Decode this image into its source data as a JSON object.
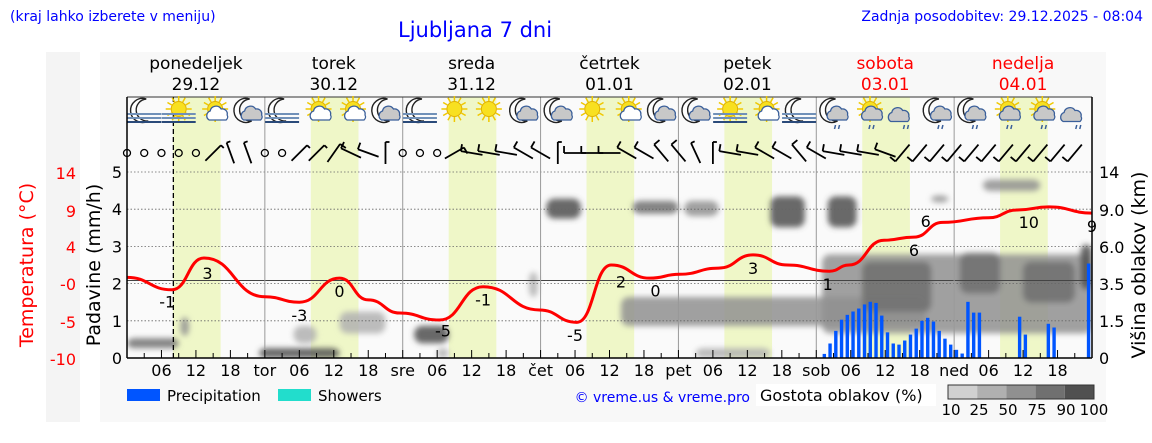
{
  "header": {
    "hint": "(kraj lahko izberete v meniju)",
    "title": "Ljubljana 7 dni",
    "updated": "Zadnja posodobitev: 29.12.2025 - 08:04"
  },
  "days": [
    {
      "name": "ponedeljek",
      "date": "29.12",
      "short": "",
      "weekend": false
    },
    {
      "name": "torek",
      "date": "30.12",
      "short": "tor",
      "weekend": false
    },
    {
      "name": "sreda",
      "date": "31.12",
      "short": "sre",
      "weekend": false
    },
    {
      "name": "četrtek",
      "date": "01.01",
      "short": "čet",
      "weekend": false
    },
    {
      "name": "petek",
      "date": "02.01",
      "short": "pet",
      "weekend": false
    },
    {
      "name": "sobota",
      "date": "03.01",
      "short": "sob",
      "weekend": true
    },
    {
      "name": "nedelja",
      "date": "04.01",
      "short": "ned",
      "weekend": true
    }
  ],
  "hour_labels": [
    "06",
    "12",
    "18"
  ],
  "axes": {
    "temp_title": "Temperatura (°C)",
    "temp_ticks": [
      "14",
      "9",
      "4",
      "-0",
      "-5",
      "-10"
    ],
    "precip_title": "Padavine (mm/h)",
    "precip_ticks": [
      "0",
      "1",
      "2",
      "3",
      "4",
      "5"
    ],
    "cloud_title": "Višina oblakov (km)",
    "cloud_ticks": [
      "0",
      "1.5",
      "3.5",
      "6.0",
      "9.0",
      "14"
    ]
  },
  "legend": {
    "precipitation": "Precipitation",
    "showers": "Showers",
    "copyright": "© vreme.us & vreme.pro",
    "cloud_density_title": "Gostota oblakov (%)",
    "cloud_density_ticks": [
      "10",
      "25",
      "50",
      "75",
      "90",
      "100"
    ]
  },
  "colors": {
    "temperature": "#ff0000",
    "precipitation": "#0055ff",
    "showers": "#22ddcc",
    "daylight": "#eff7c8",
    "link": "#0000ff",
    "weekend": "#ff0000",
    "cloud_density": [
      "#d0d0d0",
      "#b0b0b0",
      "#909090",
      "#707070",
      "#505050"
    ]
  },
  "chart_data": {
    "type": "meteogram",
    "x_unit": "hours since Mon 29.12 00:00",
    "now_hour": 8.07,
    "daylight_hours": [
      8,
      16.3
    ],
    "temp_range": [
      -10,
      14
    ],
    "precip_range": [
      0,
      5
    ],
    "temperature": {
      "hours": [
        0,
        7.8,
        13.4,
        24,
        30,
        37,
        42,
        47.5,
        54.4,
        62,
        71.8,
        78.3,
        84.3,
        91,
        96.2,
        103,
        109,
        115,
        122.3,
        125.7,
        131.8,
        137,
        142,
        150,
        155,
        160.5,
        168
      ],
      "values": [
        0.4,
        -1.2,
        2.9,
        -2.1,
        -2.8,
        0.3,
        -2.5,
        -4.2,
        -5.1,
        -0.8,
        -3.8,
        -5.4,
        2.0,
        0.3,
        0.8,
        1.6,
        3.3,
        2.0,
        1.2,
        2.0,
        5.2,
        5.6,
        7.5,
        8.1,
        9.1,
        9.5,
        8.7
      ]
    },
    "temperature_labels": [
      {
        "hour": 7,
        "text": "-1"
      },
      {
        "hour": 14,
        "text": "3"
      },
      {
        "hour": 30,
        "text": "-3"
      },
      {
        "hour": 37,
        "text": "0"
      },
      {
        "hour": 55,
        "text": "-5"
      },
      {
        "hour": 62,
        "text": "-1"
      },
      {
        "hour": 78,
        "text": "-5"
      },
      {
        "hour": 86,
        "text": "2"
      },
      {
        "hour": 92,
        "text": "0"
      },
      {
        "hour": 109,
        "text": "3"
      },
      {
        "hour": 122,
        "text": "1"
      },
      {
        "hour": 137,
        "text": "6"
      },
      {
        "hour": 138,
        "text": "6"
      },
      {
        "hour": 157,
        "text": "10"
      },
      {
        "hour": 168,
        "text": "9"
      }
    ],
    "precipitation": {
      "hours": [
        121,
        122,
        123,
        124,
        125,
        126,
        127,
        128,
        129,
        130,
        131,
        132,
        133,
        134,
        135,
        136,
        137,
        138,
        139,
        140,
        141,
        142,
        143,
        144,
        145,
        146,
        147,
        148,
        155,
        156,
        160,
        161,
        167
      ],
      "values": [
        0.11,
        0.39,
        0.73,
        1.03,
        1.16,
        1.25,
        1.33,
        1.44,
        1.51,
        1.48,
        1.14,
        0.69,
        0.39,
        0.36,
        0.47,
        0.63,
        0.79,
        1.0,
        1.08,
        0.98,
        0.73,
        0.52,
        0.36,
        0.22,
        0.12,
        1.51,
        1.22,
        1.22,
        1.11,
        0.63,
        0.92,
        0.82,
        2.54
      ]
    },
    "cloud_cover": [
      {
        "from": 0,
        "to": 9,
        "km_low": 0.4,
        "km_high": 0.8,
        "density": 75
      },
      {
        "from": 23,
        "to": 37,
        "km_low": 0,
        "km_high": 0.4,
        "density": 90
      },
      {
        "from": 9.3,
        "to": 10.8,
        "km_low": 0.9,
        "km_high": 1.7,
        "density": 50
      },
      {
        "from": 29,
        "to": 33,
        "km_low": 0.6,
        "km_high": 1.3,
        "density": 25
      },
      {
        "from": 37,
        "to": 45,
        "km_low": 1.0,
        "km_high": 2.0,
        "density": 25
      },
      {
        "from": 50,
        "to": 56,
        "km_low": 0.6,
        "km_high": 1.3,
        "density": 90
      },
      {
        "from": 54,
        "to": 56,
        "km_low": 0,
        "km_high": 0.4,
        "density": 25
      },
      {
        "from": 70,
        "to": 71.5,
        "km_low": 2.8,
        "km_high": 4.3,
        "density": 25
      },
      {
        "from": 73,
        "to": 79,
        "km_low": 8.3,
        "km_high": 10.5,
        "density": 90
      },
      {
        "from": 88,
        "to": 96,
        "km_low": 8.7,
        "km_high": 10.2,
        "density": 75
      },
      {
        "from": 97,
        "to": 103,
        "km_low": 8.5,
        "km_high": 10.2,
        "density": 50
      },
      {
        "from": 86,
        "to": 139,
        "km_low": 1.3,
        "km_high": 2.8,
        "density": 50
      },
      {
        "from": 99,
        "to": 112,
        "km_low": 0,
        "km_high": 0.4,
        "density": 25
      },
      {
        "from": 112,
        "to": 118,
        "km_low": 7.6,
        "km_high": 10.8,
        "density": 90
      },
      {
        "from": 122,
        "to": 127,
        "km_low": 7.6,
        "km_high": 10.8,
        "density": 90
      },
      {
        "from": 121,
        "to": 168,
        "km_low": 1.0,
        "km_high": 5.5,
        "density": 50
      },
      {
        "from": 128,
        "to": 140,
        "km_low": 2.0,
        "km_high": 5.0,
        "density": 75
      },
      {
        "from": 145,
        "to": 152,
        "km_low": 3.0,
        "km_high": 5.6,
        "density": 75
      },
      {
        "from": 156,
        "to": 165,
        "km_low": 2.5,
        "km_high": 5.0,
        "density": 75
      },
      {
        "from": 140,
        "to": 143,
        "km_low": 10,
        "km_high": 10.9,
        "density": 50
      },
      {
        "from": 149,
        "to": 159,
        "km_low": 11.5,
        "km_high": 13,
        "density": 50
      },
      {
        "from": 166,
        "to": 168,
        "km_low": 3.2,
        "km_high": 6.2,
        "density": 90
      }
    ],
    "weather_icons": [
      "moon-fog",
      "sun-fog",
      "sun-cloud",
      "moon-cloud",
      "moon-fog",
      "sun-cloud",
      "sun-cloud",
      "moon-cloud",
      "moon-fog",
      "sun",
      "sun",
      "moon-cloud",
      "moon-cloud",
      "sun",
      "sun-cloud",
      "moon-cloud",
      "moon-cloud",
      "sun-fog",
      "sun-cloud",
      "moon-fog",
      "moon-cloud-rain",
      "sun-cloud-rain",
      "cloud-rain",
      "moon-cloud-rain",
      "moon-cloud-rain",
      "sun-cloud-rain",
      "sun-cloud-rain",
      "cloud-rain"
    ],
    "wind": [
      [
        0,
        0
      ],
      [
        0,
        0
      ],
      [
        0,
        0
      ],
      [
        0,
        0
      ],
      [
        0,
        0
      ],
      [
        45,
        5
      ],
      [
        340,
        5
      ],
      [
        340,
        5
      ],
      [
        0,
        0
      ],
      [
        0,
        0
      ],
      [
        45,
        5
      ],
      [
        45,
        5
      ],
      [
        35,
        10
      ],
      [
        295,
        10
      ],
      [
        290,
        10
      ],
      [
        0,
        5
      ],
      [
        0,
        0
      ],
      [
        0,
        0
      ],
      [
        0,
        0
      ],
      [
        60,
        10
      ],
      [
        280,
        10
      ],
      [
        280,
        10
      ],
      [
        280,
        10
      ],
      [
        300,
        10
      ],
      [
        300,
        10
      ],
      [
        0,
        5
      ],
      [
        270,
        10
      ],
      [
        270,
        10
      ],
      [
        270,
        10
      ],
      [
        300,
        10
      ],
      [
        300,
        10
      ],
      [
        320,
        10
      ],
      [
        320,
        10
      ],
      [
        335,
        5
      ],
      [
        0,
        5
      ],
      [
        280,
        10
      ],
      [
        280,
        10
      ],
      [
        300,
        10
      ],
      [
        300,
        10
      ],
      [
        320,
        10
      ],
      [
        300,
        10
      ],
      [
        280,
        10
      ],
      [
        280,
        10
      ],
      [
        280,
        10
      ],
      [
        290,
        10
      ],
      [
        220,
        10
      ],
      [
        220,
        10
      ],
      [
        220,
        10
      ],
      [
        220,
        10
      ],
      [
        220,
        10
      ],
      [
        220,
        10
      ],
      [
        220,
        10
      ],
      [
        220,
        10
      ],
      [
        220,
        10
      ],
      [
        220,
        10
      ],
      [
        220,
        10
      ]
    ]
  }
}
